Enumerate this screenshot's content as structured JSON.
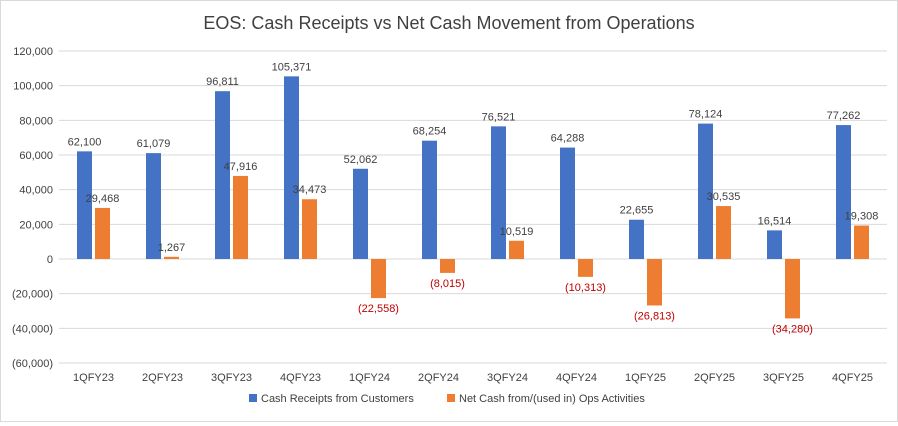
{
  "chart_data": {
    "type": "bar",
    "title": "EOS: Cash Receipts vs Net Cash Movement from Operations",
    "categories": [
      "1QFY23",
      "2QFY23",
      "3QFY23",
      "4QFY23",
      "1QFY24",
      "2QFY24",
      "3QFY24",
      "4QFY24",
      "1QFY25",
      "2QFY25",
      "3QFY25",
      "4QFY25"
    ],
    "series": [
      {
        "name": "Cash Receipts from Customers",
        "color": "#4472c4",
        "values": [
          62100,
          61079,
          96811,
          105371,
          52062,
          68254,
          76521,
          64288,
          22655,
          78124,
          16514,
          77262
        ],
        "labels": [
          "62,100",
          "61,079",
          "96,811",
          "105,371",
          "52,062",
          "68,254",
          "76,521",
          "64,288",
          "22,655",
          "78,124",
          "16,514",
          "77,262"
        ]
      },
      {
        "name": "Net Cash from/(used in) Ops Activities",
        "color": "#ed7d31",
        "values": [
          29468,
          1267,
          47916,
          34473,
          -22558,
          -8015,
          10519,
          -10313,
          -26813,
          30535,
          -34280,
          19308
        ],
        "labels": [
          "29,468",
          "1,267",
          "47,916",
          "34,473",
          "(22,558)",
          "(8,015)",
          "10,519",
          "(10,313)",
          "(26,813)",
          "30,535",
          "(34,280)",
          "19,308"
        ]
      }
    ],
    "ylim": [
      -60000,
      120000
    ],
    "yticks": [
      120000,
      100000,
      80000,
      60000,
      40000,
      20000,
      0,
      -20000,
      -40000,
      -60000
    ],
    "ytick_labels": [
      "120,000",
      "100,000",
      "80,000",
      "60,000",
      "40,000",
      "20,000",
      "0",
      "(20,000)",
      "(40,000)",
      "(60,000)"
    ],
    "xlabel": "",
    "ylabel": "",
    "grid": true,
    "legend": "bottom",
    "negative_label_color": "#c00000"
  }
}
